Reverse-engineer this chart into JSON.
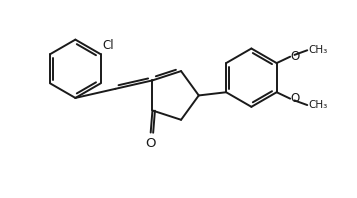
{
  "background_color": "#ffffff",
  "line_color": "#1a1a1a",
  "line_width": 1.4,
  "font_size": 8.5,
  "fig_width": 3.57,
  "fig_height": 1.98,
  "dpi": 100,
  "xlim": [
    0,
    10
  ],
  "ylim": [
    0,
    5.5
  ]
}
